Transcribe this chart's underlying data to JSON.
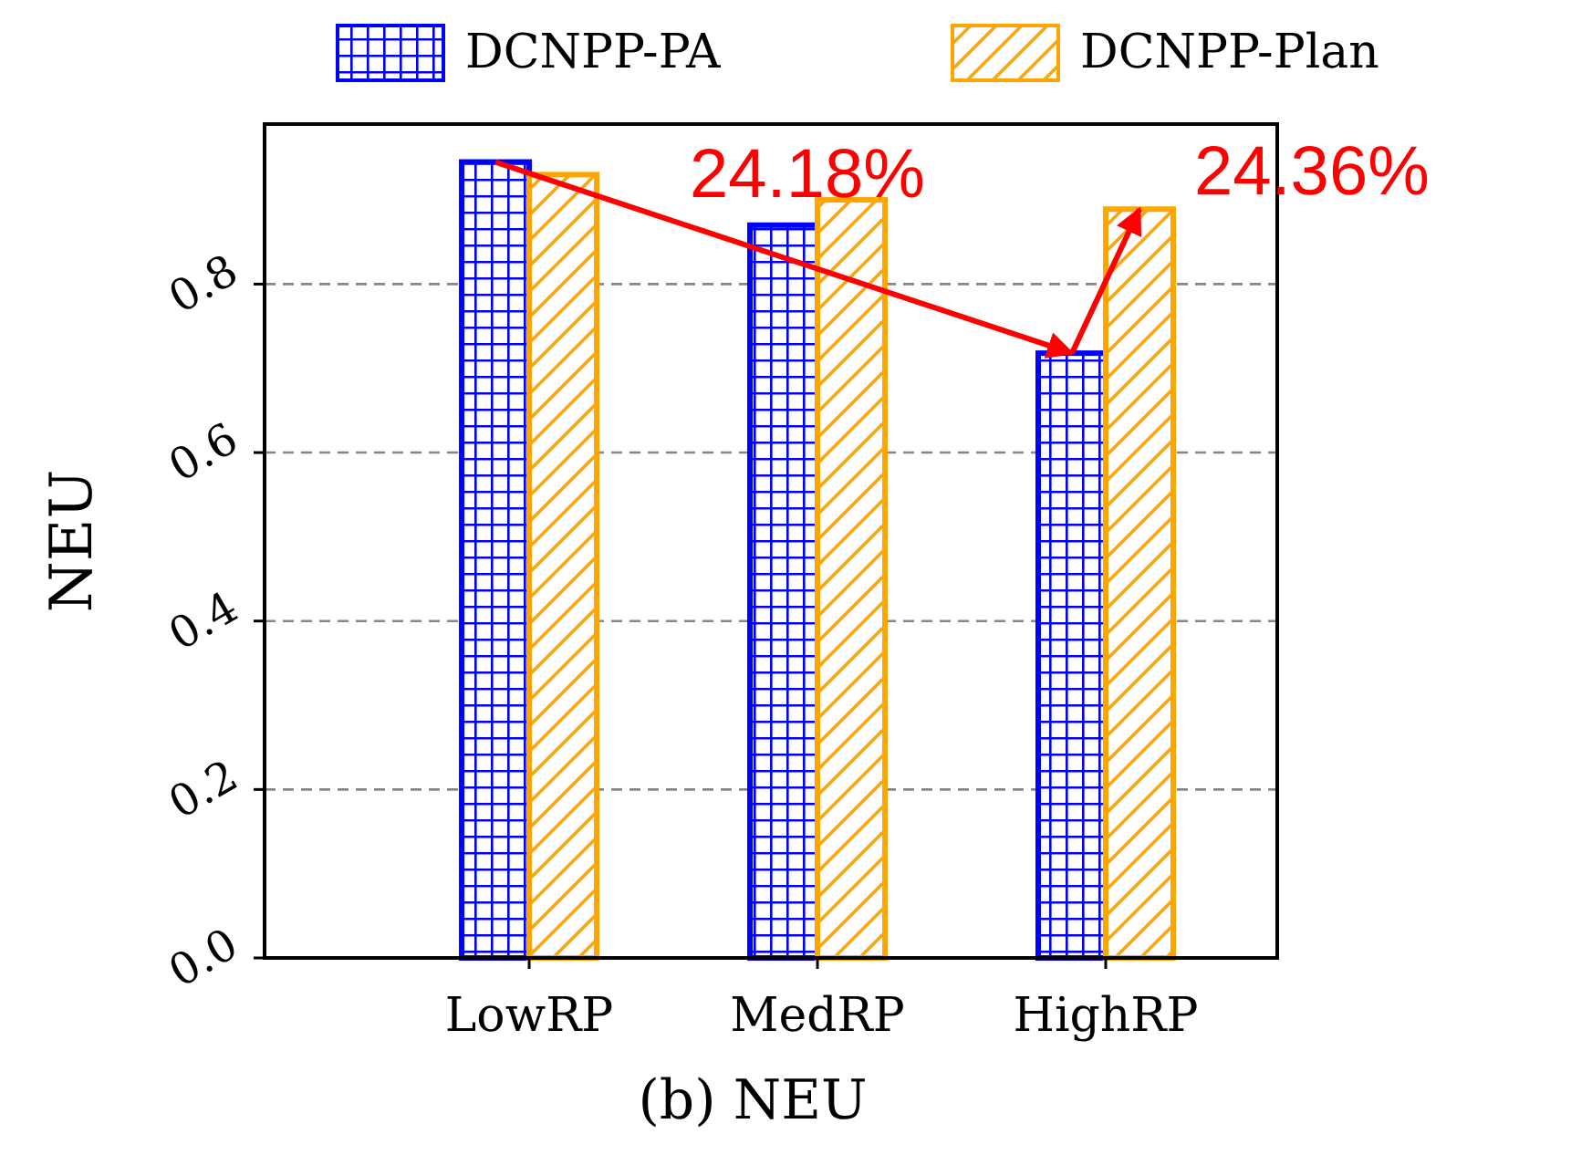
{
  "chart_data": {
    "type": "bar",
    "xlabel": "(b) NEU",
    "ylabel": "NEU",
    "categories": [
      "LowRP",
      "MedRP",
      "HighRP"
    ],
    "series": [
      {
        "name": "DCNPP-PA",
        "color": "#0000ff",
        "values": [
          0.945,
          0.87,
          0.718
        ]
      },
      {
        "name": "DCNPP-Plan",
        "color": "#ffa500",
        "values": [
          0.93,
          0.9,
          0.889
        ]
      }
    ],
    "ylim": [
      0,
      0.99
    ],
    "yticks": [
      {
        "value": 0,
        "label": "0.0"
      },
      {
        "value": 0.2,
        "label": "0.2"
      },
      {
        "value": 0.4,
        "label": "0.4"
      },
      {
        "value": 0.6,
        "label": "0.6"
      },
      {
        "value": 0.8,
        "label": "0.8"
      }
    ],
    "grid": "y",
    "legend": "top",
    "annotations": [
      "24.18%",
      {
        "text": "24.36%",
        "x": "HighRP",
        "y": 0.889
      }
    ]
  }
}
